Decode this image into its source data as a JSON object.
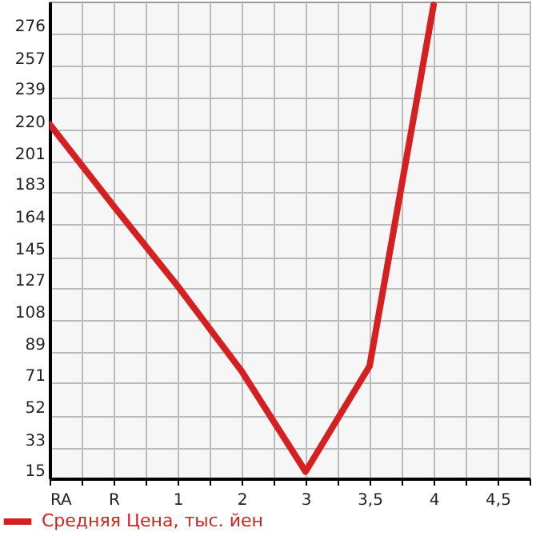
{
  "chart_data": {
    "type": "line",
    "categories": [
      "RA",
      "R",
      "1",
      "2",
      "3",
      "3,5",
      "4",
      "4,5"
    ],
    "series": [
      {
        "name": "Средняя Цена, тыс. йен",
        "color": "#d42020",
        "values": [
          223,
          175,
          128,
          78,
          19,
          81,
          293,
          null
        ]
      }
    ],
    "ylim": [
      15,
      295
    ],
    "yticks": [
      15,
      33,
      52,
      71,
      89,
      108,
      127,
      145,
      164,
      183,
      201,
      220,
      239,
      257,
      276
    ],
    "grid": true,
    "legend": "bottom",
    "marker": "none",
    "line_style": "solid"
  }
}
